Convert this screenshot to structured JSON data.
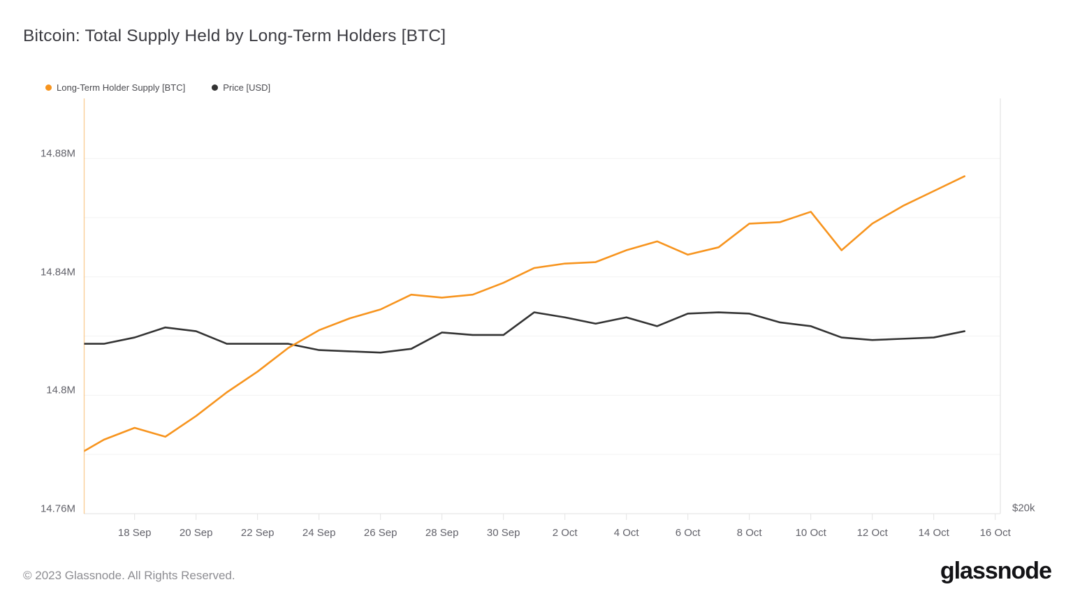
{
  "header": {
    "title": "Bitcoin: Total Supply Held by Long-Term Holders [BTC]"
  },
  "legend": {
    "items": [
      {
        "label": "Long-Term Holder Supply [BTC]",
        "color": "#F7941E"
      },
      {
        "label": "Price [USD]",
        "color": "#333333"
      }
    ]
  },
  "chart_data": {
    "type": "line",
    "title": "Bitcoin: Total Supply Held by Long-Term Holders [BTC]",
    "x": [
      "2023-09-16",
      "2023-09-17",
      "2023-09-18",
      "2023-09-19",
      "2023-09-20",
      "2023-09-21",
      "2023-09-22",
      "2023-09-23",
      "2023-09-24",
      "2023-09-25",
      "2023-09-26",
      "2023-09-27",
      "2023-09-28",
      "2023-09-29",
      "2023-09-30",
      "2023-10-01",
      "2023-10-02",
      "2023-10-03",
      "2023-10-04",
      "2023-10-05",
      "2023-10-06",
      "2023-10-07",
      "2023-10-08",
      "2023-10-09",
      "2023-10-10",
      "2023-10-11",
      "2023-10-12",
      "2023-10-13",
      "2023-10-14",
      "2023-10-15"
    ],
    "series": [
      {
        "name": "Long-Term Holder Supply [BTC]",
        "color": "#F7941E",
        "unit": "million BTC",
        "axis": "left",
        "values": [
          14.779,
          14.785,
          14.789,
          14.786,
          14.793,
          14.801,
          14.808,
          14.816,
          14.822,
          14.826,
          14.829,
          14.834,
          14.833,
          14.834,
          14.838,
          14.843,
          14.8445,
          14.845,
          14.849,
          14.852,
          14.8475,
          14.85,
          14.858,
          14.8585,
          14.862,
          14.849,
          14.858,
          14.864,
          14.869,
          14.874
        ]
      },
      {
        "name": "Price [USD]",
        "color": "#333333",
        "unit": "USD",
        "axis": "right",
        "values": [
          26750,
          26750,
          27000,
          27400,
          27250,
          26750,
          26750,
          26750,
          26500,
          26450,
          26400,
          26550,
          27200,
          27100,
          27100,
          28000,
          27800,
          27550,
          27800,
          27450,
          27950,
          28000,
          27950,
          27600,
          27450,
          27000,
          26900,
          26950,
          27000,
          27250
        ]
      }
    ],
    "left_axis": {
      "tick_labels": [
        "14.76M",
        "14.8M",
        "14.84M",
        "14.88M"
      ],
      "tick_values": [
        14.76,
        14.8,
        14.84,
        14.88
      ],
      "range": [
        14.76,
        14.9003
      ],
      "minor_grid_values": [
        14.78,
        14.8,
        14.82,
        14.84,
        14.86,
        14.88
      ]
    },
    "right_axis": {
      "tick_labels": [
        "$20k"
      ],
      "tick_values": [
        20000
      ],
      "range": [
        20000,
        36500
      ]
    },
    "x_axis": {
      "tick_labels": [
        "18 Sep",
        "20 Sep",
        "22 Sep",
        "24 Sep",
        "26 Sep",
        "28 Sep",
        "30 Sep",
        "2 Oct",
        "4 Oct",
        "6 Oct",
        "8 Oct",
        "10 Oct",
        "12 Oct",
        "14 Oct",
        "16 Oct"
      ],
      "tick_day_indices": [
        2,
        4,
        6,
        8,
        10,
        12,
        14,
        16,
        18,
        20,
        22,
        24,
        26,
        28,
        30
      ]
    },
    "grid": "horizontal-light",
    "legend_position": "top-left"
  },
  "footer": {
    "copyright": "© 2023 Glassnode. All Rights Reserved.",
    "brand": "glassnode"
  }
}
